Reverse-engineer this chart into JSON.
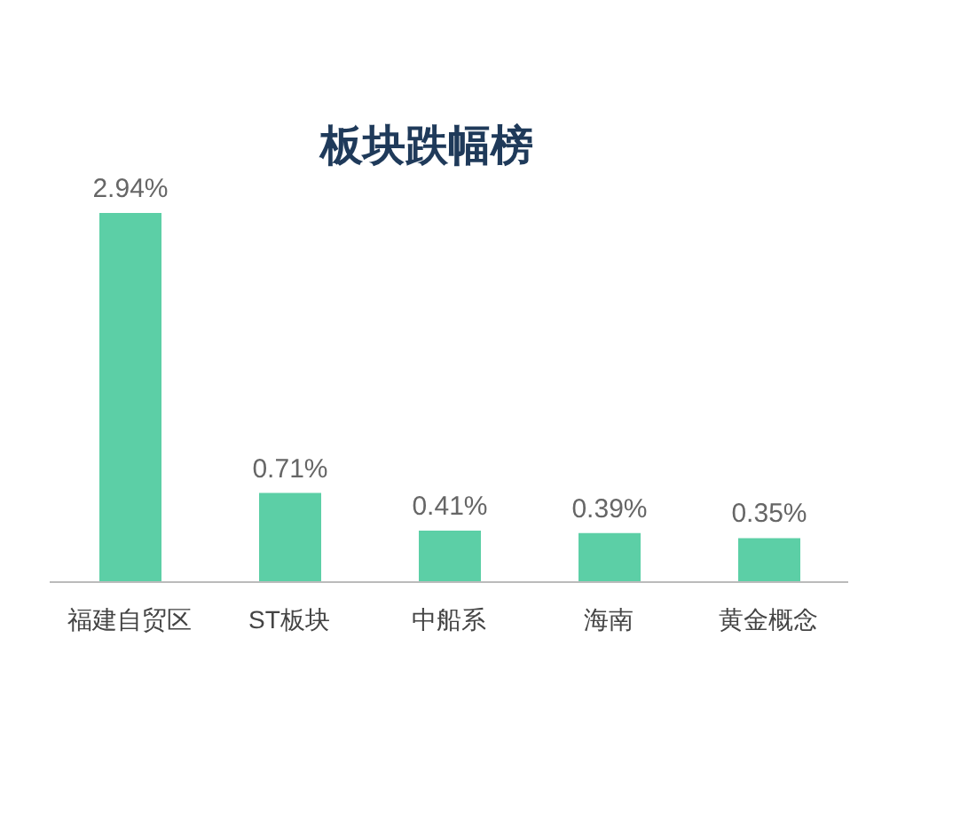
{
  "chart_data": {
    "type": "bar",
    "title": "板块跌幅榜",
    "categories": [
      "福建自贸区",
      "ST板块",
      "中船系",
      "海南",
      "黄金概念"
    ],
    "values": [
      2.94,
      0.71,
      0.41,
      0.39,
      0.35
    ],
    "value_labels": [
      "2.94%",
      "0.71%",
      "0.41%",
      "0.39%",
      "0.35%"
    ],
    "color": "#5ccfa6",
    "grid": false,
    "legend": false
  }
}
